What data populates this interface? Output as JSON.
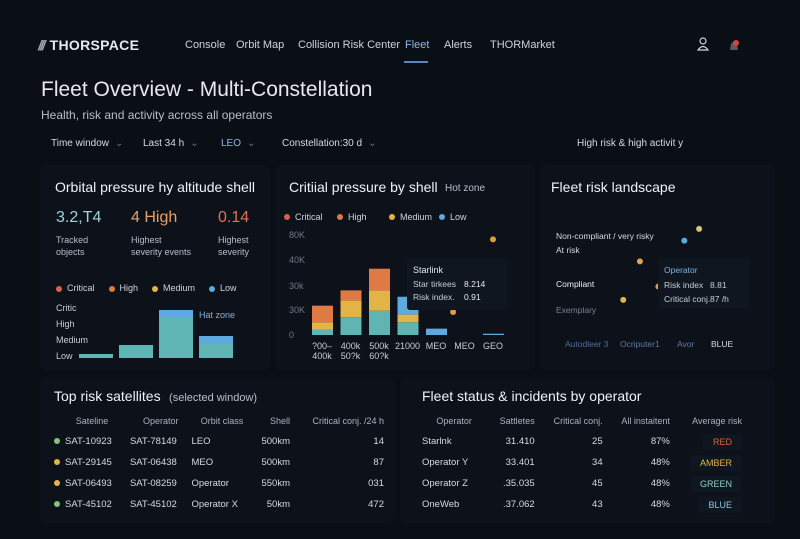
{
  "nav": {
    "brand": "THORSPACE",
    "items": [
      "Console",
      "Orbit Map",
      "Collision Risk Center",
      "Fleet",
      "Alerts",
      "THORMarket"
    ],
    "active": "Fleet",
    "icons": [
      "user-icon",
      "notification-icon"
    ]
  },
  "header": {
    "title": "Fleet Overview - Multi-Constellation",
    "subtitle": "Health, risk and activity across all operators"
  },
  "filters": {
    "items": [
      "Time window",
      "Last 34 h",
      "LEO",
      "Constellation:30 d"
    ],
    "right_label": "High risk & high activit y"
  },
  "colors": {
    "critical": "#d9614c",
    "high": "#e07a44",
    "medium": "#e2b446",
    "low": "#5ea9dd",
    "base": "#5fb4b4",
    "accent": "#8fb7e6"
  },
  "panel1": {
    "title": "Orbital pressure hy altitude shell",
    "kpis": [
      {
        "value": "3.2,T4",
        "label1": "Tracked",
        "label2": "objects",
        "color": "#9fd3d6"
      },
      {
        "value": "4 High",
        "label1": "Highest",
        "label2": "severity events",
        "color": "#e9a06a"
      },
      {
        "value": "0.14",
        "label1": "Highest",
        "label2": "severity",
        "color": "#e0705a"
      }
    ],
    "legend": [
      "Critical",
      "High",
      "Medium",
      "Low"
    ],
    "levels": [
      "Critic",
      "High",
      "Medium",
      "Low"
    ],
    "hot_zone": "Hat zone",
    "bars": [
      {
        "base": 0.06,
        "top": 0
      },
      {
        "base": 0.22,
        "top": 0
      },
      {
        "base": 0.68,
        "top": 0.12
      },
      {
        "base": 0.24,
        "top": 0.12
      }
    ]
  },
  "chart_data": [
    {
      "type": "bar",
      "title": "Critiial pressure by shell",
      "note": "Hot zone",
      "legend": [
        "Critical",
        "High",
        "Medium",
        "Low"
      ],
      "yticks": [
        "0",
        "30K",
        "30k",
        "40K",
        "80K"
      ],
      "ylim": [
        0,
        80
      ],
      "categories": [
        [
          "?00–",
          "400k"
        ],
        [
          "400k",
          "50?k"
        ],
        [
          "500k",
          "60?k"
        ],
        [
          "21000",
          ""
        ],
        [
          "MEO",
          ""
        ],
        [
          "MEO",
          ""
        ],
        [
          "GEO",
          ""
        ]
      ],
      "series": [
        {
          "key": "base",
          "values": [
            4,
            14,
            19,
            10,
            0,
            0,
            0
          ]
        },
        {
          "key": "medium",
          "values": [
            6,
            13,
            16,
            6,
            0,
            0,
            0
          ]
        },
        {
          "key": "high",
          "values": [
            13,
            8,
            17,
            0,
            0,
            0,
            0
          ]
        },
        {
          "key": "low",
          "values": [
            0,
            0,
            0,
            14,
            5,
            0,
            1
          ]
        }
      ],
      "points": [
        {
          "cat": 6,
          "y": 75
        },
        {
          "cat": 4.6,
          "y": 18
        }
      ],
      "tooltip": {
        "title": "Starlink",
        "rows": [
          [
            "Star tirkees",
            "8.214"
          ],
          [
            "Risk index.",
            "0.91"
          ]
        ]
      }
    },
    {
      "type": "scatter",
      "title": "Fleet risk landscape",
      "ylabels": [
        "Non-compliant / very risky",
        "At risk",
        "Compliant",
        "Exemplary"
      ],
      "points": [
        {
          "x": 8.6,
          "y": 9.2,
          "color": "#d9c56a"
        },
        {
          "x": 7.8,
          "y": 8.4,
          "color": "#5ea9dd"
        },
        {
          "x": 5.4,
          "y": 7.0,
          "color": "#e0a050"
        },
        {
          "x": 6.4,
          "y": 5.3,
          "color": "#e0a050"
        },
        {
          "x": 4.5,
          "y": 4.4,
          "color": "#e2b446"
        }
      ],
      "tooltip": {
        "title": "Operator",
        "rows": [
          [
            "Risk index",
            "8.81"
          ],
          [
            "Critical conj.",
            "87 /h"
          ]
        ]
      },
      "xlabels": [
        "Autodleer 3",
        "Ocriputer1",
        "Avor",
        "BLUE"
      ]
    }
  ],
  "top_risk": {
    "title": "Top risk satellites",
    "subtitle": "(selected window)",
    "columns": [
      "Sateline",
      "Operator",
      "Orbit class",
      "Shell",
      "Critical conj. /24 h"
    ],
    "rows": [
      [
        "SAT-10923",
        "SAT-78149",
        "LEO",
        "500km",
        "14",
        "#7fc47f"
      ],
      [
        "SAT-29145",
        "SAT-06438",
        "MEO",
        "500km",
        "87",
        "#e2b446"
      ],
      [
        "SAT-06493",
        "SAT-08259",
        "Operator",
        "550km",
        "031",
        "#e2b446"
      ],
      [
        "SAT-45102",
        "SAT-45102",
        "Operator X",
        "50km",
        "472",
        "#7fc47f"
      ]
    ]
  },
  "fleet_status": {
    "title": "Fleet status & incidents by operator",
    "columns": [
      "Operator",
      "Sattletes",
      "Critical conj.",
      "All instaitent",
      "Average risk"
    ],
    "rows": [
      [
        "Starlnk",
        "31.410",
        "25",
        "87%",
        "RED",
        "#d9614c"
      ],
      [
        "Operator Y",
        "33.401",
        "34",
        "48%",
        "AMBER",
        "#e2b446"
      ],
      [
        "Operator Z",
        ".35.035",
        "45",
        "48%",
        "GREEN",
        "#8fd0c8"
      ],
      [
        "OneWeb",
        ".37.062",
        "43",
        "48%",
        "BLUE",
        "#8fc4e6"
      ]
    ]
  }
}
